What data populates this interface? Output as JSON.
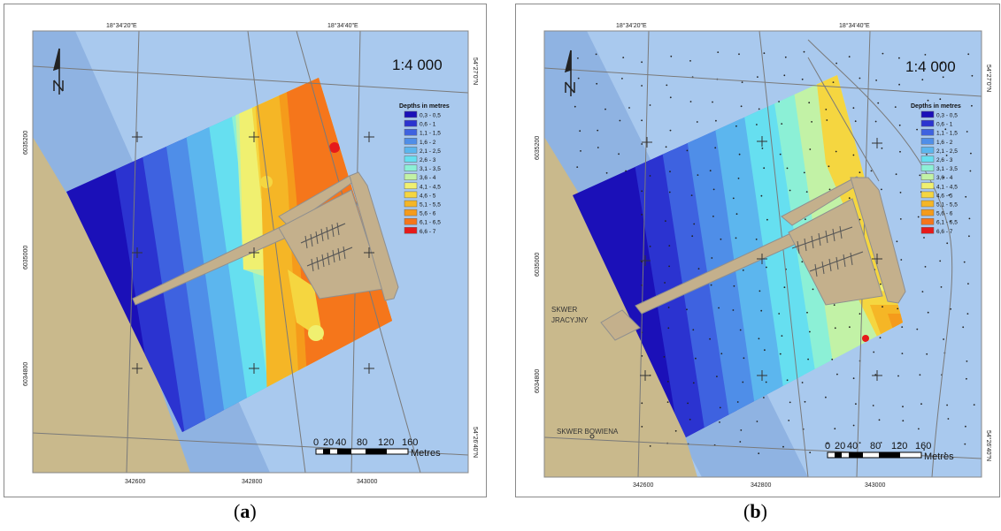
{
  "panels": [
    {
      "id": "a",
      "caption_letter": "a",
      "scale_text": "1:4 000",
      "legend_title": "Depths in metres",
      "legend_items": [
        {
          "label": "0,3 - 0,5",
          "color": "#1b10b8"
        },
        {
          "label": "0,6 - 1",
          "color": "#2b33d0"
        },
        {
          "label": "1,1 - 1,5",
          "color": "#3e62e0"
        },
        {
          "label": "1,6 - 2",
          "color": "#4f8ee8"
        },
        {
          "label": "2,1 - 2,5",
          "color": "#5cb6ee"
        },
        {
          "label": "2,6 - 3",
          "color": "#66dff0"
        },
        {
          "label": "3,1 - 3,5",
          "color": "#8cf0d6"
        },
        {
          "label": "3,6 - 4",
          "color": "#c2f2a6"
        },
        {
          "label": "4,1 - 4,5",
          "color": "#f0f070"
        },
        {
          "label": "4,6 - 5",
          "color": "#f5d640"
        },
        {
          "label": "5,1 - 5,5",
          "color": "#f5b626"
        },
        {
          "label": "5,6 - 6",
          "color": "#f59b1b"
        },
        {
          "label": "6,1 - 6,5",
          "color": "#f5761b"
        },
        {
          "label": "6,6 - 7",
          "color": "#e61a1a"
        }
      ],
      "top_coords": [
        "18°34'20\"E",
        "18°34'40\"E"
      ],
      "bottom_coords": [
        "342600",
        "342800",
        "343000"
      ],
      "left_coords": [
        "6035200",
        "6035000",
        "6034800"
      ],
      "right_coords": [
        "54°27'0\"N",
        "54°26'40\"N"
      ],
      "scale_numbers": [
        "0",
        "20",
        "40",
        "80",
        "120",
        "160"
      ],
      "scale_unit": "Metres",
      "place_labels": []
    },
    {
      "id": "b",
      "caption_letter": "b",
      "scale_text": "1:4 000",
      "legend_title": "Depths in metres",
      "legend_items": [
        {
          "label": "0,3 - 0,5",
          "color": "#1b10b8"
        },
        {
          "label": "0,6 - 1",
          "color": "#2b33d0"
        },
        {
          "label": "1,1 - 1,5",
          "color": "#3e62e0"
        },
        {
          "label": "1,6 - 2",
          "color": "#4f8ee8"
        },
        {
          "label": "2,1 - 2,5",
          "color": "#5cb6ee"
        },
        {
          "label": "2,6 - 3",
          "color": "#66dff0"
        },
        {
          "label": "3,1 - 3,5",
          "color": "#8cf0d6"
        },
        {
          "label": "3,6 - 4",
          "color": "#c2f2a6"
        },
        {
          "label": "4,1 - 4,5",
          "color": "#f0f070"
        },
        {
          "label": "4,6 - 5",
          "color": "#f5d640"
        },
        {
          "label": "5,1 - 5,5",
          "color": "#f5b626"
        },
        {
          "label": "5,6 - 6",
          "color": "#f59b1b"
        },
        {
          "label": "6,1 - 6,5",
          "color": "#f5761b"
        },
        {
          "label": "6,6 - 7",
          "color": "#e61a1a"
        }
      ],
      "top_coords": [
        "18°34'20\"E",
        "18°34'40\"E"
      ],
      "bottom_coords": [
        "342600",
        "342800",
        "343000"
      ],
      "left_coords": [
        "6035200",
        "6035000",
        "6034800"
      ],
      "right_coords": [
        "54°27'0\"N",
        "54°26'40\"N"
      ],
      "scale_numbers": [
        "0",
        "20",
        "40",
        "80",
        "120",
        "160"
      ],
      "scale_unit": "Metres",
      "place_labels": [
        "SKWER",
        "JRACYJNY",
        "SKWER BOWIENA"
      ]
    }
  ],
  "colors": {
    "water": "#a9c9ee",
    "shallow_water": "#8fb3e2",
    "land": "#c9b98c",
    "pier": "#c4b08c",
    "pier_outline": "#8f8f8f"
  }
}
